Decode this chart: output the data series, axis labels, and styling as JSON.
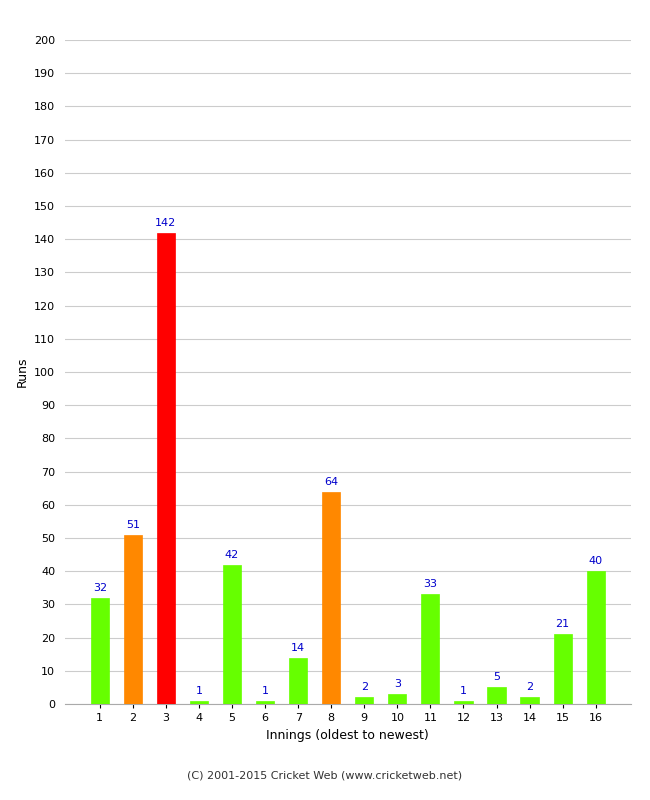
{
  "xlabel": "Innings (oldest to newest)",
  "ylabel": "Runs",
  "categories": [
    1,
    2,
    3,
    4,
    5,
    6,
    7,
    8,
    9,
    10,
    11,
    12,
    13,
    14,
    15,
    16
  ],
  "values": [
    32,
    51,
    142,
    1,
    42,
    1,
    14,
    64,
    2,
    3,
    33,
    1,
    5,
    2,
    21,
    40
  ],
  "bar_colors": [
    "#66ff00",
    "#ff8800",
    "#ff0000",
    "#66ff00",
    "#66ff00",
    "#66ff00",
    "#66ff00",
    "#ff8800",
    "#66ff00",
    "#66ff00",
    "#66ff00",
    "#66ff00",
    "#66ff00",
    "#66ff00",
    "#66ff00",
    "#66ff00"
  ],
  "ylim": [
    0,
    200
  ],
  "yticks": [
    0,
    10,
    20,
    30,
    40,
    50,
    60,
    70,
    80,
    90,
    100,
    110,
    120,
    130,
    140,
    150,
    160,
    170,
    180,
    190,
    200
  ],
  "label_color": "#0000cc",
  "background_color": "#ffffff",
  "grid_color": "#cccccc",
  "footer": "(C) 2001-2015 Cricket Web (www.cricketweb.net)",
  "bar_width": 0.55
}
